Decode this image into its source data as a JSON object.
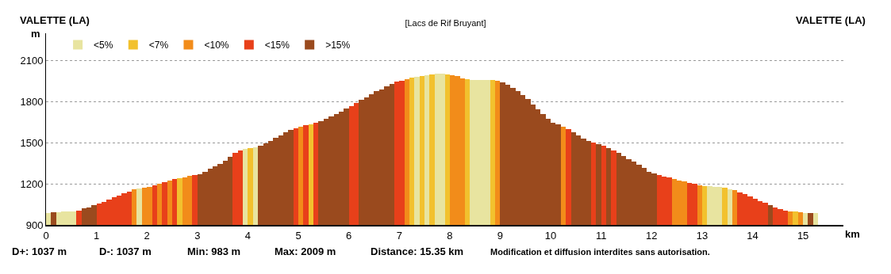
{
  "chart_data": {
    "type": "bar",
    "title": "[Lacs de Rif Bruyant]",
    "xlabel": "km",
    "ylabel": "m",
    "annotations": [
      "VALETTE (LA)",
      "VALETTE (LA)",
      "D+: 1037 m",
      "D-: 1037 m",
      "Min: 983 m",
      "Max: 2009 m",
      "Distance: 15.35 km",
      "Modification et diffusion interdites sans autorisation."
    ],
    "xlim": [
      0,
      15.8
    ],
    "xticks": [
      0,
      1,
      2,
      3,
      4,
      5,
      6,
      7,
      8,
      9,
      10,
      11,
      12,
      13,
      14,
      15
    ],
    "ylim": [
      900,
      2300
    ],
    "yticks": [
      900,
      1200,
      1500,
      1800,
      2100
    ],
    "grid": "y",
    "legend": "top left",
    "series": [
      {
        "name": "<5%",
        "color": "#e8e4a0",
        "x": [
          0.05,
          0.25,
          0.35,
          0.45,
          0.55,
          1.85,
          3.95,
          4.15,
          7.35,
          7.55,
          7.75,
          7.85,
          8.45,
          8.55,
          8.65,
          8.75,
          13.15,
          13.25,
          13.35,
          13.55,
          15.05,
          15.25
        ],
        "values": [
          985,
          995,
          997,
          998,
          1000,
          1165,
          1455,
          1468,
          1983,
          1996,
          2006,
          2005,
          1958,
          1956,
          1956,
          1956,
          1183,
          1180,
          1176,
          1162,
          989,
          985
        ]
      },
      {
        "name": "<7%",
        "color": "#f2c12e",
        "x": [
          2.65,
          4.05,
          5.25,
          7.25,
          7.45,
          7.65,
          7.95,
          8.35,
          8.85,
          13.05,
          13.45,
          14.85
        ],
        "values": [
          1240,
          1460,
          1636,
          1975,
          1990,
          2002,
          2002,
          1965,
          1956,
          1186,
          1172,
          996
        ]
      },
      {
        "name": "<10%",
        "color": "#f28c1a",
        "x": [
          1.75,
          1.95,
          2.05,
          2.25,
          2.45,
          2.75,
          2.85,
          5.05,
          7.15,
          8.05,
          8.15,
          8.25,
          8.95,
          10.25,
          12.45,
          12.55,
          12.65,
          12.95,
          13.65,
          14.75,
          14.95
        ],
        "values": [
          1158,
          1172,
          1180,
          1200,
          1225,
          1248,
          1256,
          1618,
          1965,
          1995,
          1985,
          1972,
          1952,
          1616,
          1236,
          1226,
          1218,
          1192,
          1153,
          1000,
          992
        ]
      },
      {
        "name": "<15%",
        "color": "#e8401a",
        "x": [
          0.65,
          1.05,
          1.15,
          1.25,
          1.35,
          1.45,
          1.55,
          1.65,
          2.15,
          2.35,
          2.55,
          2.95,
          3.75,
          3.85,
          4.95,
          5.15,
          5.35,
          6.05,
          6.15,
          6.95,
          7.05,
          10.35,
          10.85,
          11.05,
          11.25,
          12.15,
          12.25,
          12.35,
          12.75,
          12.85,
          13.75,
          13.85,
          13.95,
          14.05,
          14.15,
          14.25,
          14.45,
          14.55,
          14.65
        ],
        "values": [
          1005,
          1055,
          1070,
          1085,
          1100,
          1115,
          1130,
          1145,
          1190,
          1212,
          1233,
          1264,
          1428,
          1445,
          1608,
          1627,
          1645,
          1768,
          1790,
          1945,
          1955,
          1598,
          1502,
          1480,
          1444,
          1264,
          1254,
          1245,
          1209,
          1200,
          1138,
          1123,
          1108,
          1090,
          1075,
          1060,
          1030,
          1015,
          1005
        ]
      },
      {
        "name": ">15%",
        "color": "#9a4a1e",
        "x": [
          0.15,
          0.75,
          0.85,
          0.95,
          3.05,
          3.15,
          3.25,
          3.35,
          3.45,
          3.55,
          3.65,
          4.25,
          4.35,
          4.45,
          4.55,
          4.65,
          4.75,
          4.85,
          5.45,
          5.55,
          5.65,
          5.75,
          5.85,
          5.95,
          6.25,
          6.35,
          6.45,
          6.55,
          6.65,
          6.75,
          6.85,
          9.05,
          9.15,
          9.25,
          9.35,
          9.45,
          9.55,
          9.65,
          9.75,
          9.85,
          9.95,
          10.05,
          10.15,
          10.45,
          10.55,
          10.65,
          10.75,
          10.95,
          11.15,
          11.35,
          11.45,
          11.55,
          11.65,
          11.75,
          11.85,
          11.95,
          12.05,
          14.35,
          15.15
        ],
        "values": [
          990,
          1020,
          1030,
          1045,
          1272,
          1290,
          1308,
          1326,
          1345,
          1370,
          1400,
          1476,
          1495,
          1515,
          1535,
          1555,
          1578,
          1592,
          1658,
          1676,
          1694,
          1712,
          1730,
          1750,
          1812,
          1834,
          1856,
          1875,
          1892,
          1910,
          1928,
          1944,
          1925,
          1900,
          1875,
          1850,
          1818,
          1782,
          1746,
          1710,
          1674,
          1648,
          1632,
          1575,
          1552,
          1530,
          1512,
          1492,
          1462,
          1426,
          1405,
          1382,
          1360,
          1338,
          1314,
          1290,
          1274,
          1045,
          987
        ]
      }
    ]
  }
}
